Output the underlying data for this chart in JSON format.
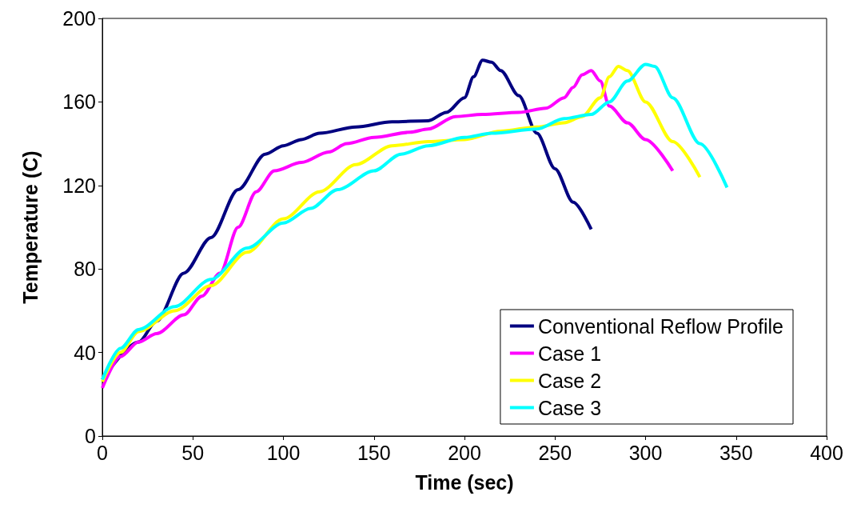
{
  "chart_data": {
    "type": "line",
    "xlabel": "Time (sec)",
    "ylabel": "Temperature (C)",
    "xlim": [
      0,
      400
    ],
    "xticks": [
      0,
      50,
      100,
      150,
      200,
      250,
      300,
      350,
      400
    ],
    "ylim": [
      0,
      200
    ],
    "yticks": [
      0,
      40,
      80,
      120,
      160,
      200
    ],
    "grid": false,
    "legend": "bottom right",
    "marker": "none",
    "line_style": "solid",
    "series": [
      {
        "name": "Conventional Reflow Profile",
        "color": "#000080",
        "x": [
          0,
          20,
          30,
          45,
          60,
          75,
          90,
          100,
          110,
          120,
          140,
          160,
          180,
          190,
          200,
          205,
          210,
          215,
          220,
          230,
          240,
          250,
          260,
          270
        ],
        "values": [
          27,
          45,
          55,
          78,
          95,
          118,
          135,
          139,
          142,
          145,
          148,
          150.5,
          151,
          155,
          162,
          172,
          180,
          179,
          175,
          163,
          145,
          128,
          112,
          99
        ]
      },
      {
        "name": "Case 1",
        "color": "#ff00ff",
        "x": [
          0,
          10,
          20,
          30,
          45,
          55,
          65,
          75,
          85,
          95,
          110,
          125,
          135,
          150,
          170,
          180,
          195,
          210,
          230,
          245,
          255,
          260,
          265,
          270,
          275,
          280,
          290,
          300,
          315
        ],
        "values": [
          23,
          38,
          45,
          49,
          58,
          67,
          78,
          100,
          117,
          127,
          131,
          136,
          140,
          143,
          145.5,
          147,
          153,
          154,
          155,
          157,
          162,
          167,
          173,
          175,
          170,
          158,
          150,
          142,
          127
        ]
      },
      {
        "name": "Case 2",
        "color": "#ffff00",
        "x": [
          0,
          10,
          20,
          40,
          60,
          80,
          100,
          120,
          140,
          160,
          180,
          200,
          220,
          240,
          255,
          265,
          275,
          280,
          285,
          290,
          300,
          315,
          330
        ],
        "values": [
          26,
          40,
          50,
          60,
          72,
          88,
          104,
          117,
          130,
          139,
          141,
          142,
          146,
          148,
          150,
          153,
          162,
          172,
          177,
          175,
          160,
          141,
          124
        ]
      },
      {
        "name": "Case 3",
        "color": "#00ffff",
        "x": [
          0,
          10,
          20,
          40,
          60,
          80,
          100,
          115,
          130,
          150,
          165,
          180,
          200,
          215,
          240,
          255,
          270,
          280,
          290,
          300,
          305,
          315,
          330,
          345
        ],
        "values": [
          27,
          42,
          51,
          62,
          75,
          90,
          102,
          109,
          118,
          127,
          135,
          139,
          143,
          145,
          147,
          152,
          154,
          160,
          170,
          178,
          177,
          162,
          140,
          119
        ]
      }
    ]
  }
}
